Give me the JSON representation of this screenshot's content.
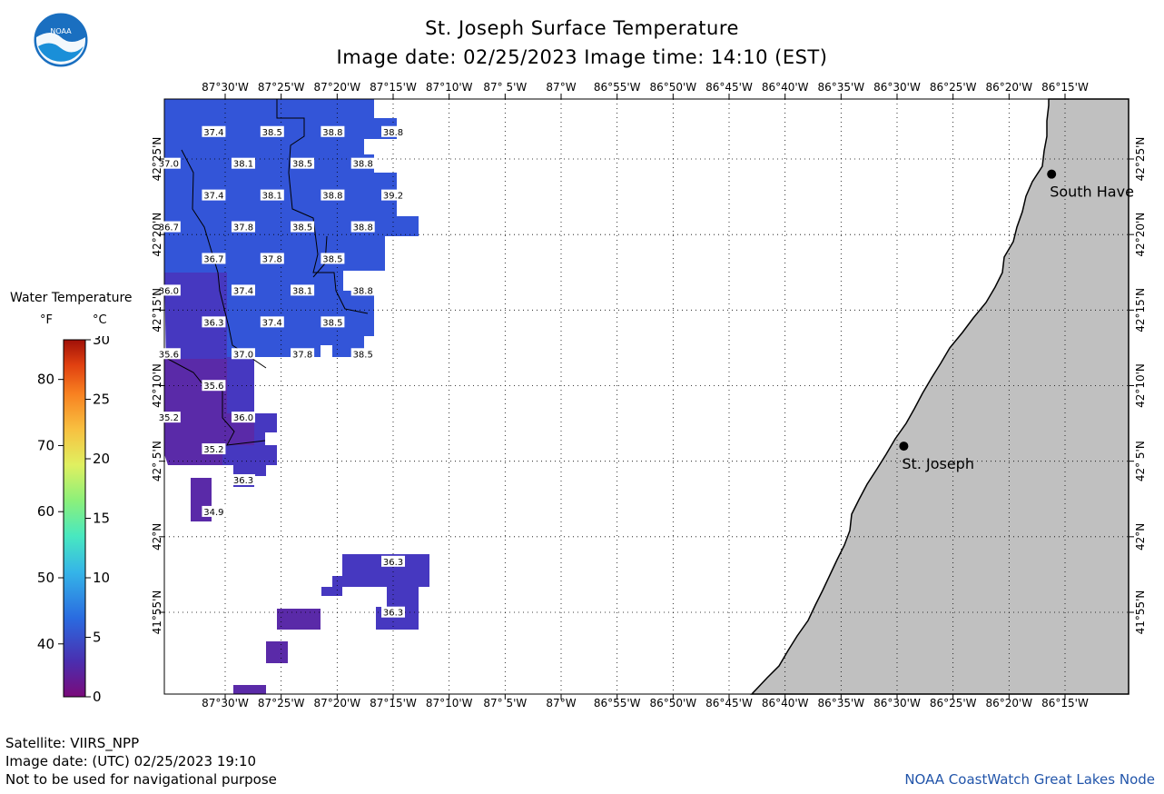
{
  "title": "St. Joseph Surface Temperature",
  "subtitle": "Image date: 02/25/2023     Image time: 14:10 (EST)",
  "logo_text": "NOAA",
  "lon_labels": [
    "87°30'W",
    "87°25'W",
    "87°20'W",
    "87°15'W",
    "87°10'W",
    "87° 5'W",
    "87°W",
    "86°55'W",
    "86°50'W",
    "86°45'W",
    "86°40'W",
    "86°35'W",
    "86°30'W",
    "86°25'W",
    "86°20'W",
    "86°15'W"
  ],
  "lat_labels": [
    "42°25'N",
    "42°20'N",
    "42°15'N",
    "42°10'N",
    "42° 5'N",
    "42°N",
    "41°55'N"
  ],
  "cities": [
    {
      "name": "South Have",
      "lon": -86.27,
      "lat": 42.4
    },
    {
      "name": "St. Joseph",
      "lon": -86.49,
      "lat": 42.1
    }
  ],
  "temperature_labels_F": [
    {
      "v": "37.4",
      "lon": -87.517,
      "lat": 42.447
    },
    {
      "v": "38.5",
      "lon": -87.43,
      "lat": 42.447
    },
    {
      "v": "38.8",
      "lon": -87.34,
      "lat": 42.447
    },
    {
      "v": "38.8",
      "lon": -87.25,
      "lat": 42.447
    },
    {
      "v": "37.0",
      "lon": -87.584,
      "lat": 42.412
    },
    {
      "v": "38.1",
      "lon": -87.473,
      "lat": 42.412
    },
    {
      "v": "38.5",
      "lon": -87.385,
      "lat": 42.412
    },
    {
      "v": "38.8",
      "lon": -87.295,
      "lat": 42.412
    },
    {
      "v": "37.4",
      "lon": -87.517,
      "lat": 42.377
    },
    {
      "v": "38.1",
      "lon": -87.43,
      "lat": 42.377
    },
    {
      "v": "38.8",
      "lon": -87.34,
      "lat": 42.377
    },
    {
      "v": "39.2",
      "lon": -87.25,
      "lat": 42.377
    },
    {
      "v": "36.7",
      "lon": -87.584,
      "lat": 42.342
    },
    {
      "v": "37.8",
      "lon": -87.473,
      "lat": 42.342
    },
    {
      "v": "38.5",
      "lon": -87.385,
      "lat": 42.342
    },
    {
      "v": "38.8",
      "lon": -87.295,
      "lat": 42.342
    },
    {
      "v": "36.7",
      "lon": -87.517,
      "lat": 42.307
    },
    {
      "v": "37.8",
      "lon": -87.43,
      "lat": 42.307
    },
    {
      "v": "38.5",
      "lon": -87.34,
      "lat": 42.307
    },
    {
      "v": "36.0",
      "lon": -87.584,
      "lat": 42.272
    },
    {
      "v": "37.4",
      "lon": -87.473,
      "lat": 42.272
    },
    {
      "v": "38.1",
      "lon": -87.385,
      "lat": 42.272
    },
    {
      "v": "38.8",
      "lon": -87.295,
      "lat": 42.272
    },
    {
      "v": "36.3",
      "lon": -87.517,
      "lat": 42.237
    },
    {
      "v": "37.4",
      "lon": -87.43,
      "lat": 42.237
    },
    {
      "v": "38.5",
      "lon": -87.34,
      "lat": 42.237
    },
    {
      "v": "35.6",
      "lon": -87.584,
      "lat": 42.202
    },
    {
      "v": "37.0",
      "lon": -87.473,
      "lat": 42.202
    },
    {
      "v": "37.8",
      "lon": -87.385,
      "lat": 42.202
    },
    {
      "v": "38.5",
      "lon": -87.295,
      "lat": 42.202
    },
    {
      "v": "35.6",
      "lon": -87.517,
      "lat": 42.167
    },
    {
      "v": "35.2",
      "lon": -87.584,
      "lat": 42.132
    },
    {
      "v": "36.0",
      "lon": -87.473,
      "lat": 42.132
    },
    {
      "v": "35.2",
      "lon": -87.517,
      "lat": 42.097
    },
    {
      "v": "36.3",
      "lon": -87.473,
      "lat": 42.063
    },
    {
      "v": "34.9",
      "lon": -87.517,
      "lat": 42.028
    },
    {
      "v": "36.3",
      "lon": -87.25,
      "lat": 41.973
    },
    {
      "v": "36.3",
      "lon": -87.25,
      "lat": 41.917
    }
  ],
  "legend": {
    "title": "Water Temperature",
    "unit_f": "°F",
    "unit_c": "°C",
    "f_ticks": [
      "80",
      "70",
      "60",
      "50",
      "40"
    ],
    "c_ticks": [
      "30",
      "25",
      "20",
      "15",
      "10",
      "5",
      "0"
    ],
    "colors": [
      "#7a0a7a",
      "#4a2fb0",
      "#2a6be0",
      "#35b5e8",
      "#48e8c0",
      "#8cf07a",
      "#e0f060",
      "#f8c040",
      "#f88020",
      "#e04010",
      "#a01008"
    ]
  },
  "footer": {
    "satellite": "Satellite: VIIRS_NPP",
    "image_date_utc": "Image date: (UTC) 02/25/2023  19:10",
    "disclaimer": "Not to be used for navigational purpose",
    "credit": "NOAA CoastWatch Great Lakes Node"
  },
  "colors": {
    "land": "#c0c0c0",
    "warm_water": "#3355d8",
    "mid_water": "#4638c0",
    "cool_water": "#5a2aa8"
  }
}
